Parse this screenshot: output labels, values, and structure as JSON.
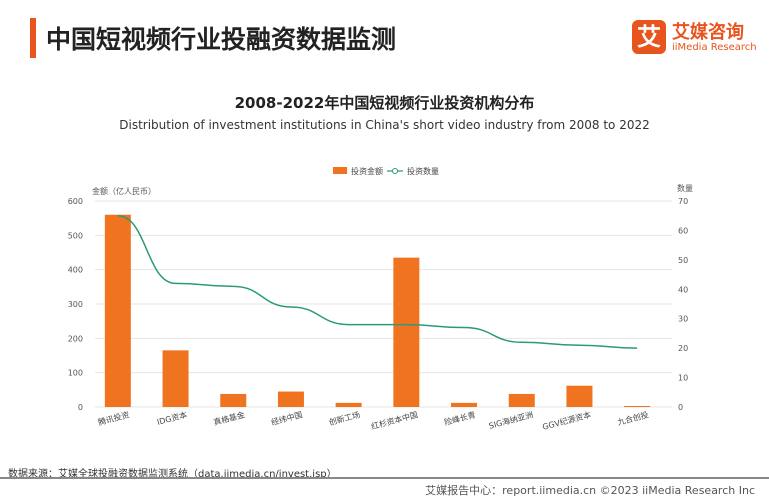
{
  "header": {
    "title": "中国短视频行业投融资数据监测",
    "logo_mark": "艾",
    "logo_cn": "艾媒咨询",
    "logo_en": "iiMedia Research"
  },
  "chart_data": {
    "type": "bar+line",
    "title": "2008-2022年中国短视频行业投资机构分布",
    "subtitle": "Distribution of investment institutions in China's short video industry from 2008 to 2022",
    "categories": [
      "腾讯投资",
      "IDG资本",
      "真格基金",
      "经纬中国",
      "创新工场",
      "红杉资本中国",
      "险峰长青",
      "SIG海纳亚洲",
      "GGV纪源资本",
      "九合创投"
    ],
    "series": [
      {
        "name": "投资金额",
        "type": "bar",
        "axis": "left",
        "color": "#f07320",
        "values": [
          560,
          165,
          38,
          45,
          12,
          435,
          12,
          38,
          62,
          3
        ]
      },
      {
        "name": "投资数量",
        "type": "line",
        "axis": "right",
        "color": "#2a9a7a",
        "values": [
          65,
          42,
          41,
          34,
          28,
          28,
          27,
          22,
          21,
          20
        ]
      }
    ],
    "ylabel": "金额（亿人民币）",
    "y2label": "数量",
    "ylim": [
      0,
      600
    ],
    "y2lim": [
      0,
      70
    ],
    "yticks": [
      0,
      100,
      200,
      300,
      400,
      500,
      600
    ],
    "y2ticks": [
      0,
      10,
      20,
      30,
      40,
      50,
      60,
      70
    ],
    "grid": true,
    "legend": "top-center"
  },
  "footer": {
    "source": "数据来源：艾媒全球投融资数据监测系统（data.iimedia.cn/invest.jsp）",
    "credit": "艾媒报告中心：report.iimedia.cn ©2023 iiMedia Research Inc"
  }
}
